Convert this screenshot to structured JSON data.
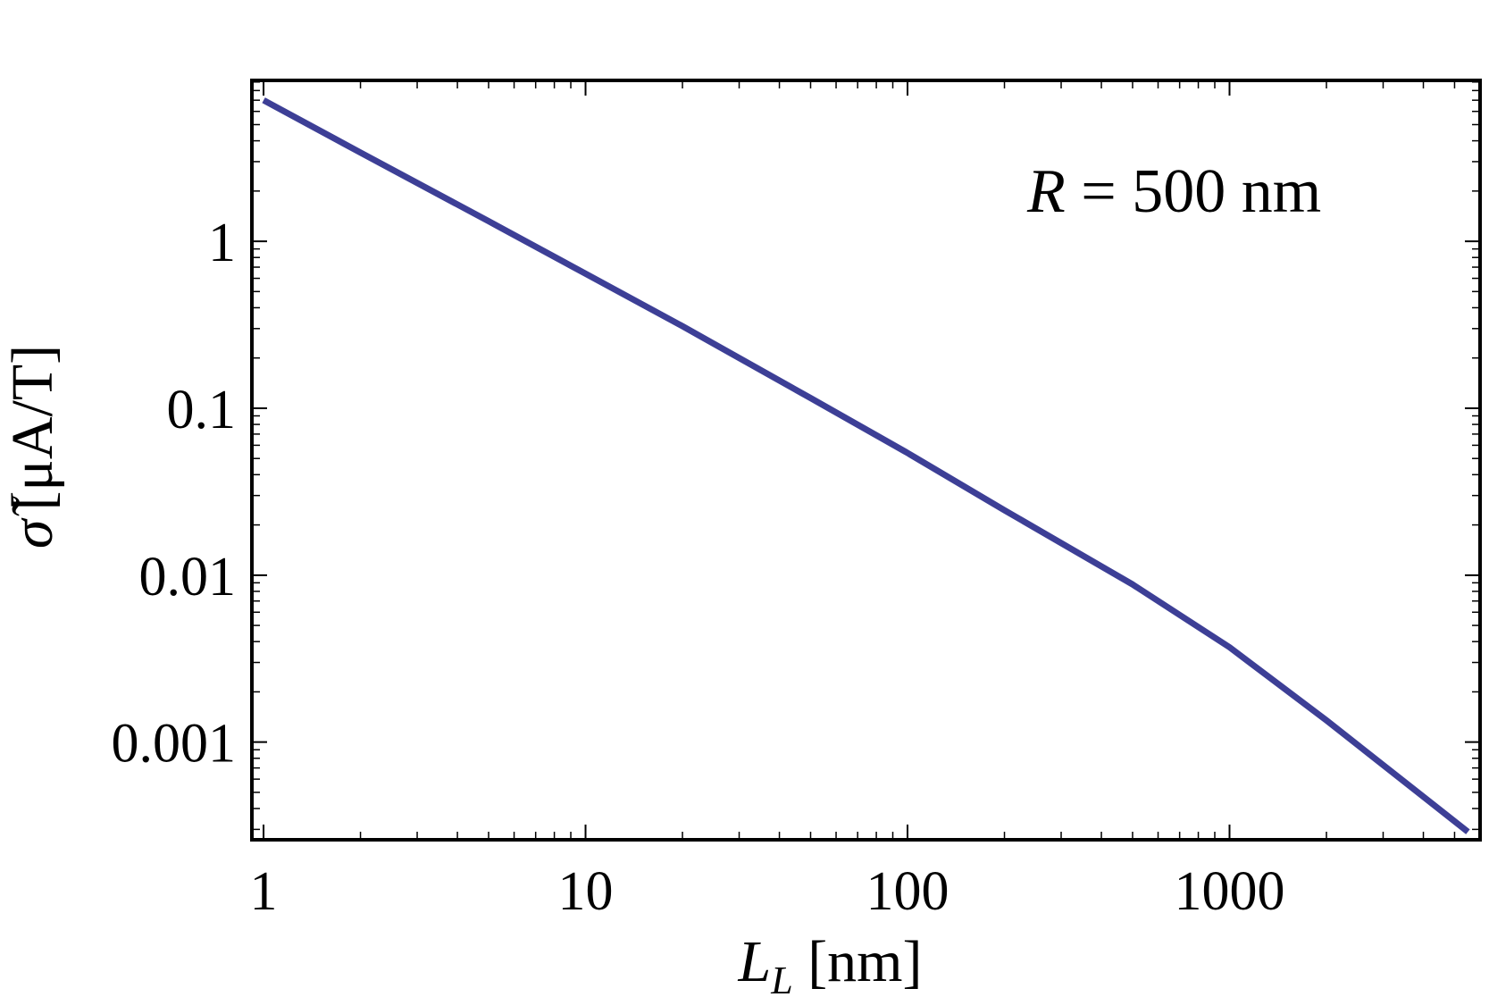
{
  "chart_data": {
    "type": "line",
    "x_scale": "log",
    "y_scale": "log",
    "xlim": [
      0.92,
      6000
    ],
    "ylim": [
      0.00026,
      9.2
    ],
    "x_ticks": [
      1,
      10,
      100,
      1000
    ],
    "x_tick_labels": [
      "1",
      "10",
      "100",
      "1000"
    ],
    "y_ticks": [
      0.001,
      0.01,
      0.1,
      1
    ],
    "y_tick_labels": [
      "0.001",
      "0.01",
      "0.1",
      "1"
    ],
    "xlabel": {
      "symbol": "L",
      "subscript": "L",
      "unit": " [nm]"
    },
    "ylabel": {
      "symbol": "σ̃",
      "unit": "[μA/T]"
    },
    "annotation": {
      "symbol": "R",
      "rest": " = 500 nm"
    },
    "grid": false,
    "series": [
      {
        "color": "#3d3f96",
        "x": [
          1,
          2,
          5,
          10,
          20,
          50,
          100,
          200,
          500,
          1000,
          2000,
          5500
        ],
        "y": [
          7.0,
          3.4,
          1.32,
          0.64,
          0.31,
          0.115,
          0.054,
          0.0245,
          0.0088,
          0.0037,
          0.00135,
          0.00029
        ]
      }
    ]
  }
}
